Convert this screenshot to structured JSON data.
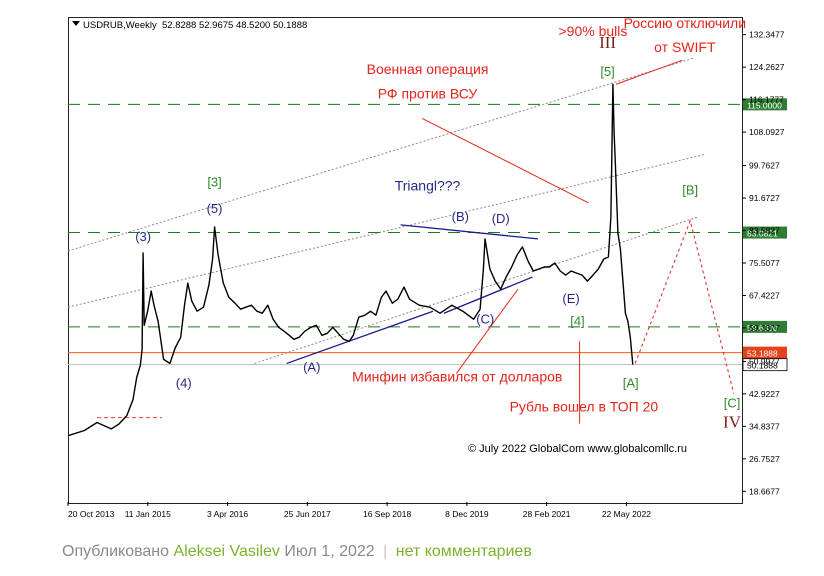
{
  "colors": {
    "price": "#000000",
    "hline": "#1c7a1c",
    "cur_price": "#ff5a1f",
    "annot_red": "#e3241b",
    "wave_blue": "#262a86",
    "wave_green": "#2e8b2e",
    "wave_dark": "#7a1f12",
    "trend": "#1a1a8c",
    "channel": "#8a8a8a",
    "label_green_bg": "#2e7d32",
    "label_red_bg": "#e3431b"
  },
  "chart_data": {
    "type": "line",
    "symbol_header": "USDRUB,Weekly",
    "ohlc": "52.8288 52.9675 48.5200 50.1888",
    "ylim": [
      16.0,
      136.5
    ],
    "yticks": [
      "132.3477",
      "124.2627",
      "116.1777",
      "108.0927",
      "99.7627",
      "91.6727",
      "83.5827",
      "75.5077",
      "67.4227",
      "59.3377",
      "50.9977",
      "42.9227",
      "34.8377",
      "26.7527",
      "18.6677"
    ],
    "xtick_labels": [
      "20 Oct 2013",
      "11 Jan 2015",
      "3 Apr 2016",
      "25 Jun 2017",
      "16 Sep 2018",
      "8 Dec 2019",
      "28 Feb 2021",
      "22 May 2022"
    ],
    "xticks_at": [
      "2013-10-20",
      "2015-01-11",
      "2016-04-03",
      "2017-06-25",
      "2018-09-16",
      "2019-12-08",
      "2021-02-28",
      "2022-05-22"
    ],
    "x_range": [
      "2013-10-20",
      "2024-03-01"
    ],
    "price_series": {
      "name": "USDRUB",
      "x": [
        "2013-10-20",
        "2014-01-20",
        "2014-04-01",
        "2014-06-20",
        "2014-08-01",
        "2014-09-15",
        "2014-10-20",
        "2014-11-10",
        "2014-11-30",
        "2014-12-10",
        "2014-12-16",
        "2014-12-22",
        "2015-01-10",
        "2015-01-30",
        "2015-02-15",
        "2015-03-10",
        "2015-04-10",
        "2015-05-15",
        "2015-06-15",
        "2015-07-15",
        "2015-08-05",
        "2015-08-24",
        "2015-09-15",
        "2015-10-15",
        "2015-11-20",
        "2015-12-20",
        "2016-01-10",
        "2016-01-21",
        "2016-02-10",
        "2016-03-10",
        "2016-04-10",
        "2016-05-15",
        "2016-06-15",
        "2016-07-15",
        "2016-08-15",
        "2016-09-15",
        "2016-10-15",
        "2016-11-15",
        "2016-12-15",
        "2017-01-15",
        "2017-02-15",
        "2017-03-15",
        "2017-04-10",
        "2017-05-10",
        "2017-06-10",
        "2017-07-15",
        "2017-08-15",
        "2017-09-15",
        "2017-10-15",
        "2017-11-15",
        "2017-12-15",
        "2018-01-15",
        "2018-02-15",
        "2018-03-10",
        "2018-04-10",
        "2018-05-15",
        "2018-06-15",
        "2018-07-15",
        "2018-08-15",
        "2018-09-10",
        "2018-10-15",
        "2018-11-15",
        "2018-12-20",
        "2019-01-20",
        "2019-03-15",
        "2019-05-15",
        "2019-07-10",
        "2019-09-15",
        "2019-11-15",
        "2020-01-15",
        "2020-02-20",
        "2020-03-10",
        "2020-03-19",
        "2020-04-15",
        "2020-05-15",
        "2020-06-15",
        "2020-07-15",
        "2020-08-15",
        "2020-09-15",
        "2020-10-15",
        "2020-11-15",
        "2020-12-15",
        "2021-01-15",
        "2021-02-15",
        "2021-03-15",
        "2021-04-15",
        "2021-05-15",
        "2021-06-15",
        "2021-07-15",
        "2021-08-15",
        "2021-09-15",
        "2021-10-15",
        "2021-11-15",
        "2021-12-15",
        "2022-01-15",
        "2022-02-10",
        "2022-02-24",
        "2022-03-07",
        "2022-03-14",
        "2022-03-21",
        "2022-04-04",
        "2022-04-18",
        "2022-05-02",
        "2022-05-16",
        "2022-05-30",
        "2022-06-13",
        "2022-06-27"
      ],
      "y": [
        32.5,
        33.8,
        35.8,
        34.2,
        35.4,
        37.5,
        41.5,
        47.0,
        50.0,
        54.0,
        78.0,
        60.0,
        63.5,
        68.5,
        65.0,
        61.0,
        51.5,
        50.5,
        54.5,
        57.0,
        65.0,
        70.5,
        66.0,
        63.5,
        64.5,
        70.0,
        76.5,
        84.5,
        77.5,
        70.5,
        67.0,
        65.5,
        64.0,
        64.5,
        65.0,
        63.5,
        63.0,
        65.0,
        61.5,
        59.5,
        58.5,
        57.5,
        56.5,
        57.0,
        58.5,
        59.5,
        60.0,
        57.5,
        58.0,
        59.5,
        58.0,
        56.5,
        56.0,
        57.5,
        62.0,
        62.5,
        63.5,
        62.5,
        67.0,
        68.5,
        65.5,
        66.5,
        69.5,
        66.5,
        65.0,
        64.5,
        63.0,
        65.0,
        63.5,
        61.5,
        64.0,
        74.0,
        81.5,
        74.0,
        71.0,
        69.0,
        72.0,
        74.5,
        77.5,
        79.5,
        76.0,
        73.5,
        74.0,
        74.5,
        74.5,
        75.5,
        73.5,
        72.5,
        73.5,
        73.0,
        72.5,
        71.0,
        72.5,
        74.0,
        76.5,
        77.0,
        87.0,
        120.0,
        108.0,
        100.0,
        83.0,
        79.0,
        71.0,
        63.0,
        61.0,
        57.0,
        50.2
      ]
    },
    "hlines": [
      {
        "label": "115.0000",
        "y": 115.0,
        "style": "dashed",
        "label_bg": "label_green_bg"
      },
      {
        "label": "83.0821",
        "y": 83.0821,
        "style": "dashed",
        "label_bg": "label_green_bg"
      },
      {
        "label": "59.6000",
        "y": 59.6,
        "style": "dashed",
        "label_bg": "label_green_bg"
      },
      {
        "label": "53.1888",
        "y": 53.1888,
        "style": "solid",
        "label_bg": "label_red_bg"
      }
    ],
    "current_price": {
      "label": "50.1888",
      "y": 50.1888
    },
    "support_stub": {
      "x": [
        "2014-04-01",
        "2015-04-01"
      ],
      "y": 37.0
    },
    "trendlines": [
      {
        "x1": "2017-03-01",
        "y1": 50.5,
        "x2": "2019-06-01",
        "y2": 63.5,
        "kind": "solid"
      },
      {
        "x1": "2019-08-01",
        "y1": 63.0,
        "x2": "2020-12-10",
        "y2": 72.0,
        "kind": "solid"
      },
      {
        "x1": "2018-12-01",
        "y1": 85.0,
        "x2": "2021-01-10",
        "y2": 81.5,
        "kind": "solid"
      },
      {
        "x1": "2013-10-20",
        "y1": 78.5,
        "x2": "2023-06-01",
        "y2": 126.5,
        "kind": "dotted"
      },
      {
        "x1": "2013-10-20",
        "y1": 64.5,
        "x2": "2023-08-01",
        "y2": 102.5,
        "kind": "dotted"
      },
      {
        "x1": "2016-09-01",
        "y1": 50.5,
        "x2": "2023-07-01",
        "y2": 87.0,
        "kind": "dotted"
      }
    ],
    "projection": {
      "x": [
        "2022-07-10",
        "2023-05-15",
        "2024-01-15"
      ],
      "y": [
        50.5,
        86.0,
        43.0
      ]
    },
    "wave_labels": [
      {
        "text": "(3)",
        "x": "2014-12-16",
        "y": 81.0,
        "color": "wave_blue"
      },
      {
        "text": "(4)",
        "x": "2015-08-01",
        "y": 44.5,
        "color": "wave_blue"
      },
      {
        "text": "(5)",
        "x": "2016-01-21",
        "y": 88.0,
        "color": "wave_blue"
      },
      {
        "text": "[3]",
        "x": "2016-01-21",
        "y": 94.5,
        "color": "wave_green"
      },
      {
        "text": "(A)",
        "x": "2017-07-20",
        "y": 48.5,
        "color": "wave_blue"
      },
      {
        "text": "(B)",
        "x": "2019-11-01",
        "y": 86.0,
        "color": "wave_blue"
      },
      {
        "text": "(C)",
        "x": "2020-03-20",
        "y": 60.5,
        "color": "wave_blue"
      },
      {
        "text": "(D)",
        "x": "2020-06-15",
        "y": 85.5,
        "color": "wave_blue"
      },
      {
        "text": "(E)",
        "x": "2021-07-15",
        "y": 65.5,
        "color": "wave_blue"
      },
      {
        "text": "[4]",
        "x": "2021-08-20",
        "y": 60.0,
        "color": "wave_green"
      },
      {
        "text": "[5]",
        "x": "2022-02-05",
        "y": 122.0,
        "color": "wave_green"
      },
      {
        "text": "III",
        "x": "2022-02-05",
        "y": 129.0,
        "color": "wave_dark"
      },
      {
        "text": "[A]",
        "x": "2022-06-15",
        "y": 44.5,
        "color": "wave_green"
      },
      {
        "text": "[B]",
        "x": "2023-05-15",
        "y": 92.5,
        "color": "wave_green"
      },
      {
        "text": "[C]",
        "x": "2024-01-05",
        "y": 39.5,
        "color": "wave_green"
      },
      {
        "text": "IV",
        "x": "2024-01-05",
        "y": 34.5,
        "color": "wave_dark"
      }
    ],
    "annotations": [
      {
        "text": "Triangl???",
        "x": "2019-05-01",
        "y": 93.5,
        "color": "wave_blue"
      },
      {
        "text": "Военная операция",
        "x": "2019-05-01",
        "y": 122.5,
        "color": "annot_red"
      },
      {
        "text": "РФ против ВСУ",
        "x": "2019-05-01",
        "y": 116.5,
        "color": "annot_red"
      },
      {
        "text": ">90% bulls",
        "x": "2021-11-15",
        "y": 132.0,
        "color": "annot_red"
      },
      {
        "text": "Россию отключили",
        "x": "2023-04-15",
        "y": 134.0,
        "color": "annot_red"
      },
      {
        "text": "от SWIFT",
        "x": "2023-04-15",
        "y": 128.0,
        "color": "annot_red"
      },
      {
        "text": "Минфин избавился от долларов",
        "x": "2019-10-15",
        "y": 46.0,
        "color": "annot_red"
      },
      {
        "text": "Рубль вошел в ТОП 20",
        "x": "2021-09-25",
        "y": 38.5,
        "color": "annot_red"
      },
      {
        "text": "© July 2022 GlobalCom www.globalcomllc.ru",
        "x": "2021-08-20",
        "y": 28.5,
        "color": "price"
      }
    ],
    "leaders": [
      {
        "x1": "2019-04-01",
        "y1": 111.5,
        "x2": "2021-10-20",
        "y2": 90.5
      },
      {
        "x1": "2022-03-25",
        "y1": 120.0,
        "x2": "2023-04-01",
        "y2": 126.0
      },
      {
        "x1": "2019-10-10",
        "y1": 48.0,
        "x2": "2020-09-20",
        "y2": 69.0
      },
      {
        "x1": "2021-09-01",
        "y1": 35.5,
        "x2": "2021-09-01",
        "y2": 56.0
      }
    ],
    "grid": false
  },
  "footer": {
    "prefix": "Опубликовано",
    "author": "Aleksei Vasilev",
    "date": "Июл 1, 2022",
    "separator": "|",
    "comments": "нет комментариев"
  }
}
